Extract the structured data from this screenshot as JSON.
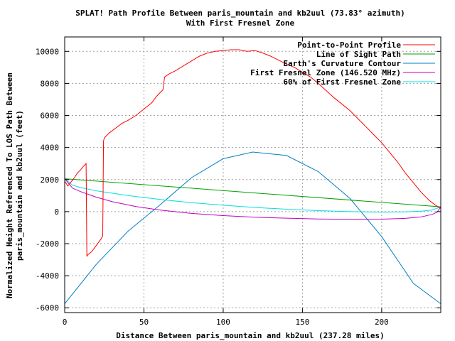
{
  "chart_data": {
    "type": "line",
    "title": "SPLAT! Path Profile Between paris_mountain and kb2uul (73.83° azimuth)",
    "subtitle": "With First Fresnel Zone",
    "xlabel": "Distance Between paris_mountain and kb2uul (237.28 miles)",
    "ylabel": [
      "Normalized Height Referenced To LOS Path Between",
      "paris_mountain and kb2uul (feet)"
    ],
    "xlim": [
      0,
      237.28
    ],
    "ylim": [
      -6300,
      10900
    ],
    "xticks": [
      0,
      50,
      100,
      150,
      200
    ],
    "yticks": [
      -6000,
      -4000,
      -2000,
      0,
      2000,
      4000,
      6000,
      8000,
      10000
    ],
    "xtick_labels": [
      "0",
      "50",
      "100",
      "150",
      "200"
    ],
    "ytick_labels": [
      "-6000",
      "-4000",
      "-2000",
      "0",
      "2000",
      "4000",
      "6000",
      "8000",
      "10000"
    ],
    "grid": true,
    "legend_position": "top-right",
    "series": [
      {
        "name": "Point-to-Point Profile",
        "color": "#ff0000",
        "x": [
          0,
          2,
          4,
          6,
          8,
          10,
          12,
          13.5,
          14,
          14.5,
          17,
          20,
          23,
          24,
          24.5,
          25,
          28,
          32,
          36,
          40,
          45,
          50,
          55,
          58,
          62,
          63,
          66,
          70,
          75,
          80,
          85,
          90,
          95,
          100,
          105,
          110,
          115,
          120,
          125,
          130,
          135,
          140,
          145,
          150,
          155,
          160,
          165,
          170,
          175,
          180,
          185,
          190,
          195,
          200,
          205,
          210,
          215,
          220,
          225,
          230,
          234,
          237.28
        ],
        "y": [
          1900,
          1600,
          1850,
          2100,
          2400,
          2600,
          2850,
          3000,
          -2800,
          -2700,
          -2500,
          -2100,
          -1700,
          -1500,
          4400,
          4600,
          4900,
          5200,
          5500,
          5700,
          6000,
          6400,
          6800,
          7200,
          7600,
          8400,
          8600,
          8800,
          9100,
          9400,
          9700,
          9900,
          10000,
          10050,
          10100,
          10100,
          10000,
          10050,
          9900,
          9700,
          9450,
          9200,
          9000,
          8700,
          8400,
          8000,
          7550,
          7100,
          6700,
          6300,
          5800,
          5300,
          4800,
          4300,
          3700,
          3100,
          2400,
          1800,
          1200,
          700,
          400,
          200
        ]
      },
      {
        "name": "Line of Sight Path",
        "color": "#00a000",
        "x": [
          0,
          237.28
        ],
        "y": [
          2050,
          300
        ]
      },
      {
        "name": "Earth's Curvature Contour",
        "color": "#0080c0",
        "x": [
          0,
          20,
          40,
          60,
          80,
          100,
          118.64,
          140,
          160,
          180,
          200,
          220,
          237.28
        ],
        "y": [
          -5750,
          -3280,
          -1220,
          410,
          2120,
          3300,
          3720,
          3500,
          2500,
          820,
          -1560,
          -4480,
          -5750
        ]
      },
      {
        "name": "First Fresnel Zone (146.520 MHz)",
        "color": "#c000c0",
        "x": [
          0,
          5,
          10,
          20,
          30,
          45,
          60,
          80,
          100,
          120,
          140,
          160,
          180,
          200,
          215,
          225,
          232,
          235,
          237.28
        ],
        "y": [
          2050,
          1460,
          1250,
          900,
          620,
          320,
          100,
          -110,
          -250,
          -350,
          -410,
          -460,
          -480,
          -470,
          -420,
          -330,
          -170,
          -30,
          300
        ]
      },
      {
        "name": "60% of First Fresnel Zone",
        "color": "#00e0e0",
        "x": [
          0,
          5,
          10,
          20,
          40,
          60,
          80,
          100,
          120,
          140,
          160,
          180,
          200,
          215,
          225,
          232,
          237.28
        ],
        "y": [
          2050,
          1650,
          1500,
          1300,
          1000,
          760,
          560,
          400,
          260,
          150,
          60,
          0,
          -30,
          -20,
          30,
          100,
          300
        ]
      }
    ]
  }
}
